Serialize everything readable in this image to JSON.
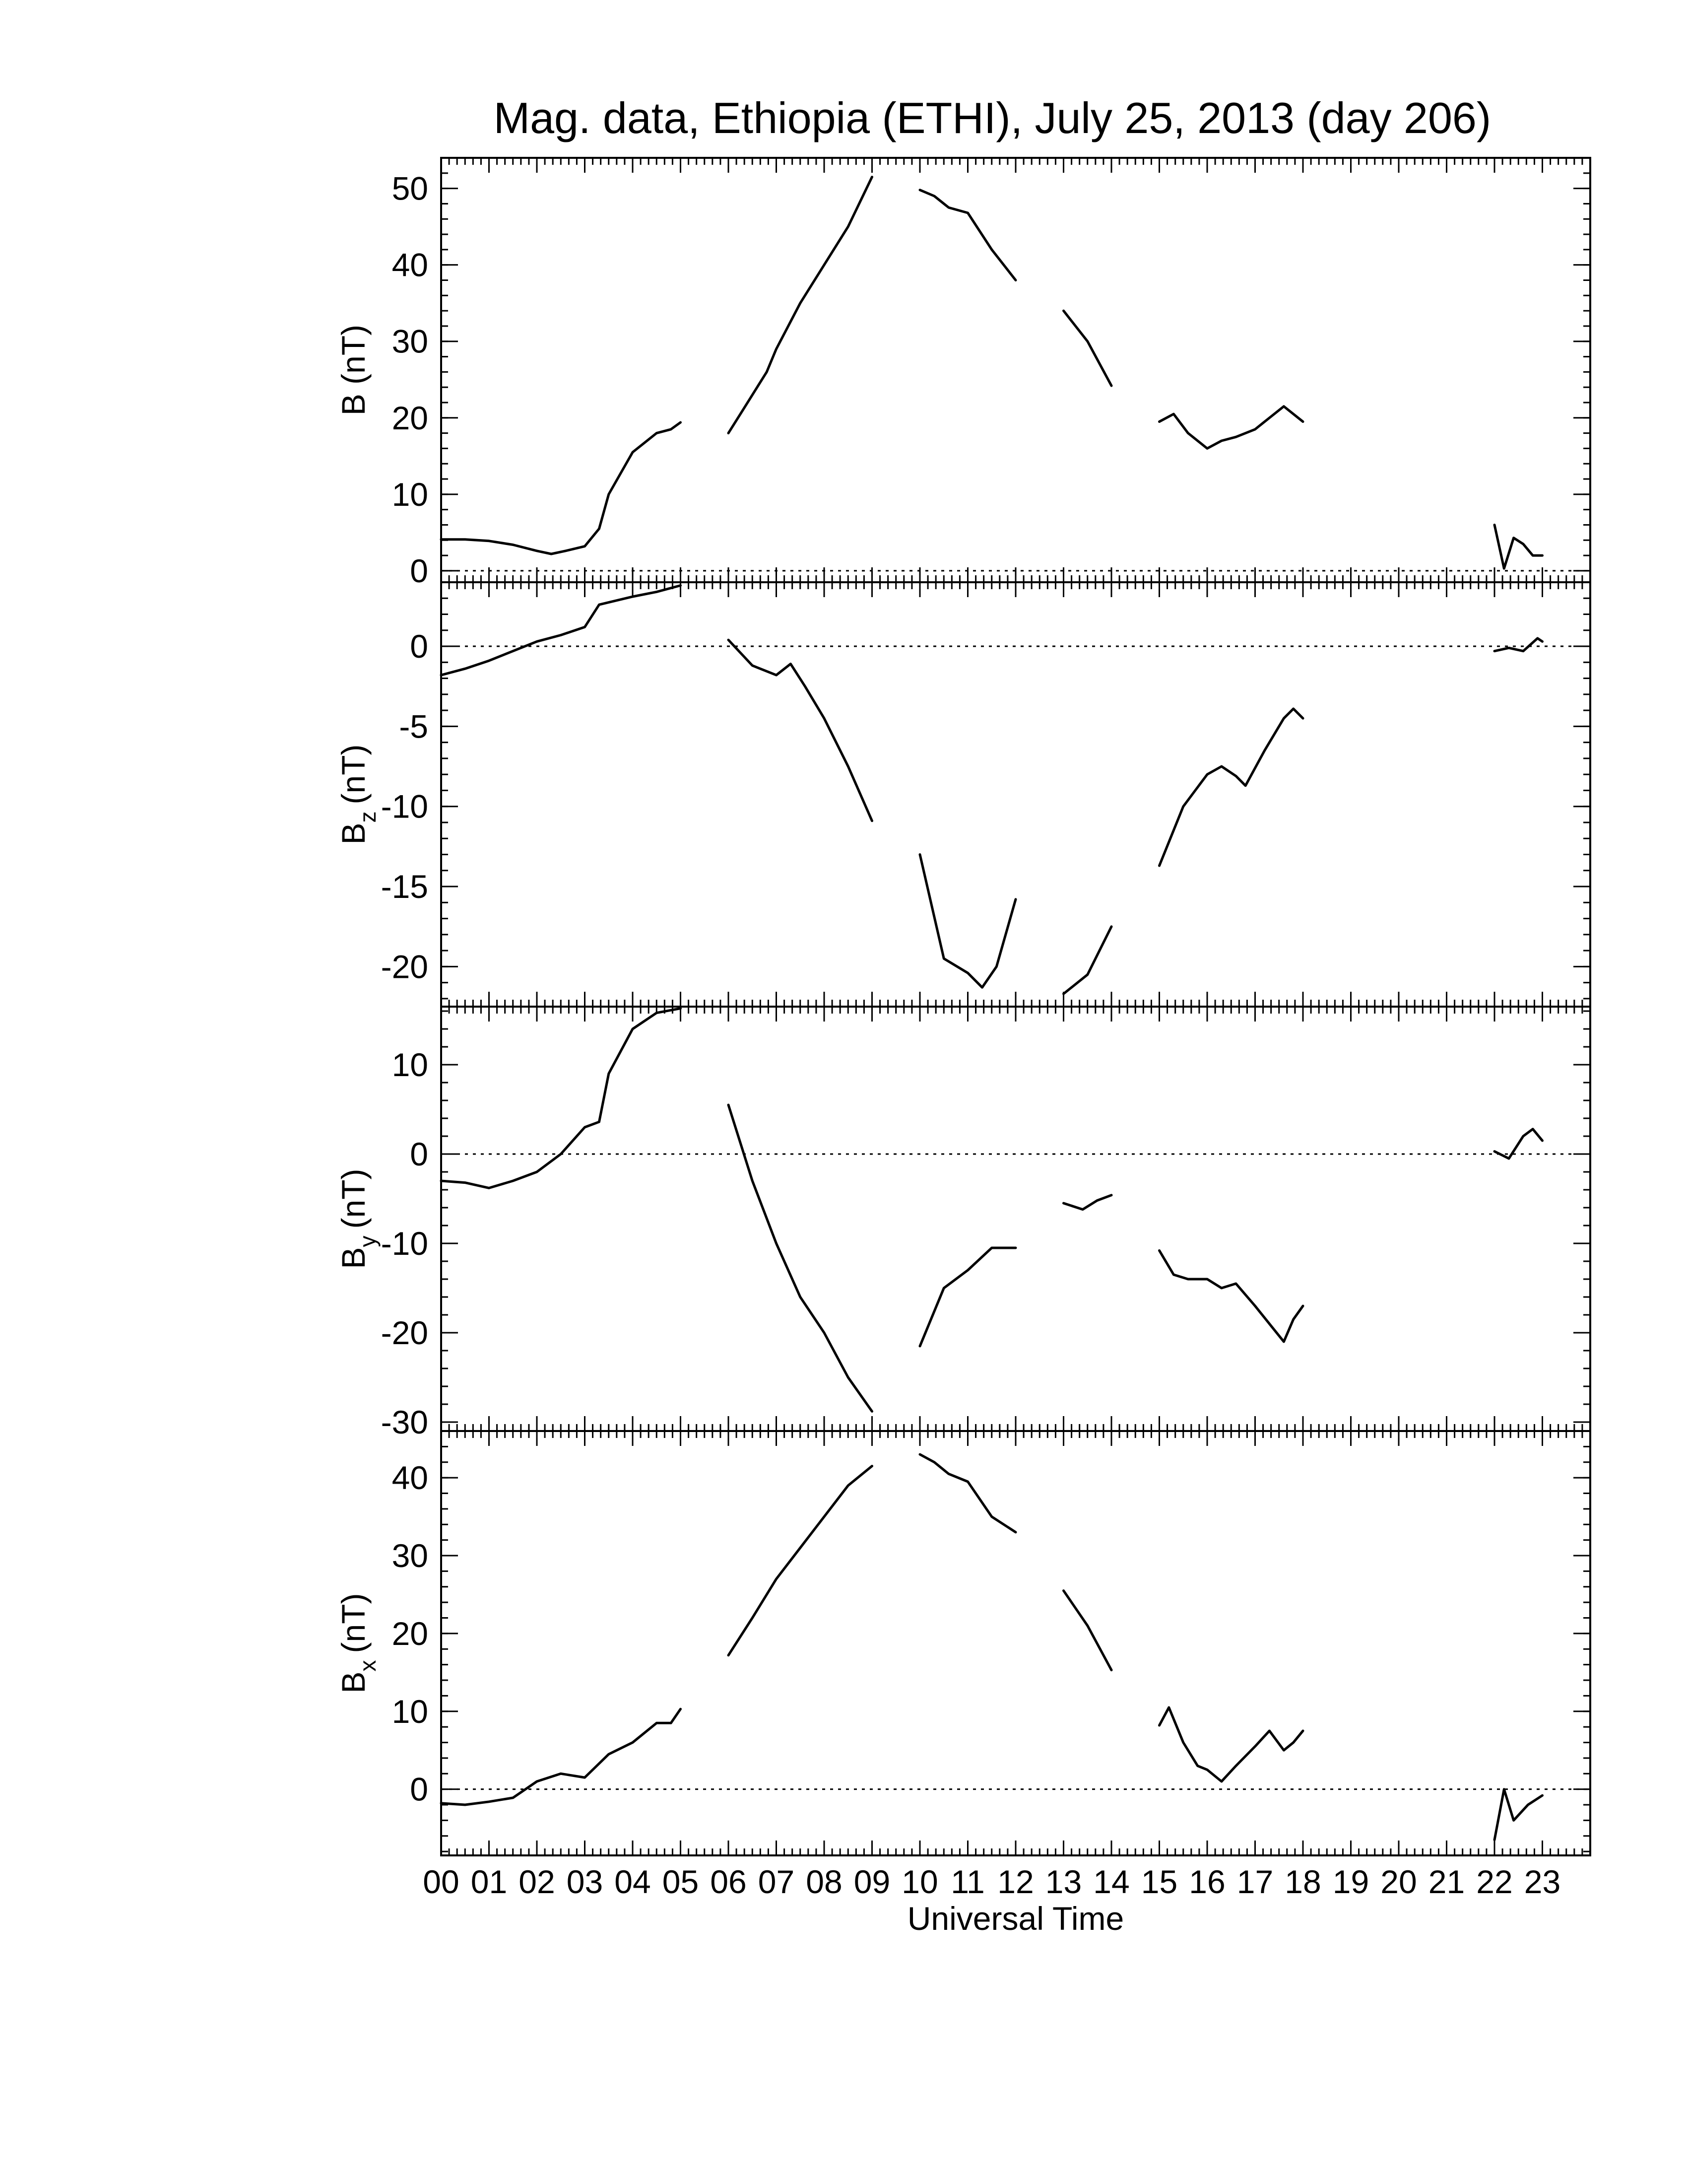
{
  "chart_data": {
    "type": "line",
    "title": "Mag. data, Ethiopia (ETHI), July 25, 2013 (day 206)",
    "xlabel": "Universal Time",
    "xlim": [
      0,
      24
    ],
    "x_tick_labels": [
      "00",
      "01",
      "02",
      "03",
      "04",
      "05",
      "06",
      "07",
      "08",
      "09",
      "10",
      "11",
      "12",
      "13",
      "14",
      "15",
      "16",
      "17",
      "18",
      "19",
      "20",
      "21",
      "22",
      "23"
    ],
    "panels": [
      {
        "id": "B",
        "ylabel_main": "B (nT)",
        "ylabel_sub": "",
        "ylabel_unit": "",
        "ylim": [
          -1.5,
          54
        ],
        "yticks": [
          0,
          10,
          20,
          30,
          40,
          50
        ],
        "zero_line": true,
        "segments": [
          [
            [
              0,
              4.1
            ],
            [
              0.5,
              4.1
            ],
            [
              1,
              3.9
            ],
            [
              1.5,
              3.4
            ],
            [
              2,
              2.6
            ],
            [
              2.3,
              2.2
            ],
            [
              2.6,
              2.6
            ],
            [
              3.0,
              3.2
            ],
            [
              3.3,
              5.5
            ],
            [
              3.5,
              10
            ],
            [
              4.0,
              15.5
            ],
            [
              4.5,
              18
            ],
            [
              4.8,
              18.5
            ],
            [
              5.0,
              19.4
            ]
          ],
          [
            [
              6.0,
              18
            ],
            [
              6.3,
              21
            ],
            [
              6.8,
              26
            ],
            [
              7.0,
              29
            ],
            [
              7.5,
              35
            ],
            [
              8.0,
              40
            ],
            [
              8.5,
              45
            ],
            [
              9.0,
              51.5
            ]
          ],
          [
            [
              10.0,
              49.8
            ],
            [
              10.3,
              49
            ],
            [
              10.6,
              47.5
            ],
            [
              11.0,
              46.8
            ],
            [
              11.5,
              42
            ],
            [
              12.0,
              38
            ]
          ],
          [
            [
              13.0,
              34
            ],
            [
              13.5,
              30
            ],
            [
              14.0,
              24.2
            ]
          ],
          [
            [
              15.0,
              19.5
            ],
            [
              15.3,
              20.5
            ],
            [
              15.6,
              18
            ],
            [
              16.0,
              16
            ],
            [
              16.3,
              17
            ],
            [
              16.6,
              17.5
            ],
            [
              17.0,
              18.5
            ],
            [
              17.3,
              20
            ],
            [
              17.6,
              21.5
            ],
            [
              18.0,
              19.5
            ]
          ],
          [
            [
              22.0,
              6
            ],
            [
              22.2,
              0.3
            ],
            [
              22.4,
              4.3
            ],
            [
              22.6,
              3.5
            ],
            [
              22.8,
              2
            ],
            [
              23.0,
              2
            ]
          ]
        ]
      },
      {
        "id": "Bz",
        "ylabel_main": "B",
        "ylabel_sub": "z",
        "ylabel_unit": "(nT)",
        "ylim": [
          -22.5,
          4
        ],
        "yticks": [
          0,
          -5,
          -10,
          -15,
          -20
        ],
        "zero_line": true,
        "segments": [
          [
            [
              0,
              -1.8
            ],
            [
              0.5,
              -1.4
            ],
            [
              1.0,
              -0.9
            ],
            [
              1.5,
              -0.3
            ],
            [
              2.0,
              0.3
            ],
            [
              2.5,
              0.7
            ],
            [
              3.0,
              1.2
            ],
            [
              3.3,
              2.6
            ],
            [
              4.0,
              3.1
            ],
            [
              4.5,
              3.4
            ],
            [
              5.0,
              3.8
            ]
          ],
          [
            [
              6.0,
              0.4
            ],
            [
              6.5,
              -1.2
            ],
            [
              7.0,
              -1.8
            ],
            [
              7.3,
              -1.1
            ],
            [
              7.6,
              -2.5
            ],
            [
              8.0,
              -4.5
            ],
            [
              8.5,
              -7.5
            ],
            [
              9.0,
              -10.9
            ]
          ],
          [
            [
              10.0,
              -13
            ],
            [
              10.5,
              -19.5
            ],
            [
              11.0,
              -20.4
            ],
            [
              11.3,
              -21.3
            ],
            [
              11.6,
              -20
            ],
            [
              12.0,
              -15.8
            ]
          ],
          [
            [
              13.0,
              -21.7
            ],
            [
              13.5,
              -20.5
            ],
            [
              14.0,
              -17.5
            ]
          ],
          [
            [
              15.0,
              -13.7
            ],
            [
              15.5,
              -10
            ],
            [
              16.0,
              -8
            ],
            [
              16.3,
              -7.5
            ],
            [
              16.6,
              -8.1
            ],
            [
              16.8,
              -8.7
            ],
            [
              17.2,
              -6.5
            ],
            [
              17.6,
              -4.5
            ],
            [
              17.8,
              -3.9
            ],
            [
              18.0,
              -4.5
            ]
          ],
          [
            [
              22.0,
              -0.3
            ],
            [
              22.3,
              -0.1
            ],
            [
              22.6,
              -0.3
            ],
            [
              22.9,
              0.5
            ],
            [
              23.0,
              0.3
            ]
          ]
        ]
      },
      {
        "id": "By",
        "ylabel_main": "B",
        "ylabel_sub": "y",
        "ylabel_unit": "(nT)",
        "ylim": [
          -31,
          16.5
        ],
        "yticks": [
          10,
          0,
          -10,
          -20,
          -30
        ],
        "zero_line": true,
        "segments": [
          [
            [
              0,
              -3
            ],
            [
              0.5,
              -3.2
            ],
            [
              1.0,
              -3.8
            ],
            [
              1.5,
              -3
            ],
            [
              2.0,
              -2
            ],
            [
              2.5,
              0
            ],
            [
              3.0,
              3
            ],
            [
              3.3,
              3.6
            ],
            [
              3.5,
              9
            ],
            [
              4.0,
              14
            ],
            [
              4.5,
              15.8
            ],
            [
              5.0,
              16.3
            ]
          ],
          [
            [
              6.0,
              5.5
            ],
            [
              6.5,
              -3
            ],
            [
              7.0,
              -10
            ],
            [
              7.5,
              -16
            ],
            [
              8.0,
              -20
            ],
            [
              8.5,
              -25
            ],
            [
              9.0,
              -28.8
            ]
          ],
          [
            [
              10.0,
              -21.5
            ],
            [
              10.5,
              -15
            ],
            [
              11.0,
              -13
            ],
            [
              11.5,
              -10.5
            ],
            [
              12.0,
              -10.5
            ]
          ],
          [
            [
              13.0,
              -5.5
            ],
            [
              13.4,
              -6.2
            ],
            [
              13.7,
              -5.2
            ],
            [
              14.0,
              -4.6
            ]
          ],
          [
            [
              15.0,
              -10.8
            ],
            [
              15.3,
              -13.5
            ],
            [
              15.6,
              -14
            ],
            [
              16.0,
              -14
            ],
            [
              16.3,
              -15
            ],
            [
              16.6,
              -14.5
            ],
            [
              17.0,
              -17
            ],
            [
              17.3,
              -19
            ],
            [
              17.6,
              -21
            ],
            [
              17.8,
              -18.5
            ],
            [
              18.0,
              -17
            ]
          ],
          [
            [
              22.0,
              0.3
            ],
            [
              22.3,
              -0.5
            ],
            [
              22.6,
              2
            ],
            [
              22.8,
              2.8
            ],
            [
              23.0,
              1.5
            ]
          ]
        ]
      },
      {
        "id": "Bx",
        "ylabel_main": "B",
        "ylabel_sub": "x",
        "ylabel_unit": "(nT)",
        "ylim": [
          -8.5,
          46
        ],
        "yticks": [
          40,
          30,
          20,
          10,
          0
        ],
        "zero_line": true,
        "segments": [
          [
            [
              0,
              -1.8
            ],
            [
              0.5,
              -2
            ],
            [
              1.0,
              -1.6
            ],
            [
              1.5,
              -1.1
            ],
            [
              2.0,
              1
            ],
            [
              2.5,
              2
            ],
            [
              3.0,
              1.5
            ],
            [
              3.5,
              4.5
            ],
            [
              4.0,
              6
            ],
            [
              4.5,
              8.5
            ],
            [
              4.8,
              8.5
            ],
            [
              5.0,
              10.3
            ]
          ],
          [
            [
              6.0,
              17.2
            ],
            [
              6.5,
              22
            ],
            [
              7.0,
              27
            ],
            [
              7.5,
              31
            ],
            [
              8.0,
              35
            ],
            [
              8.5,
              39
            ],
            [
              9.0,
              41.5
            ]
          ],
          [
            [
              10.0,
              43
            ],
            [
              10.3,
              42
            ],
            [
              10.6,
              40.5
            ],
            [
              11.0,
              39.5
            ],
            [
              11.5,
              35
            ],
            [
              12.0,
              33
            ]
          ],
          [
            [
              13.0,
              25.5
            ],
            [
              13.5,
              21
            ],
            [
              14.0,
              15.3
            ]
          ],
          [
            [
              15.0,
              8.2
            ],
            [
              15.2,
              10.5
            ],
            [
              15.5,
              6
            ],
            [
              15.8,
              3
            ],
            [
              16.0,
              2.5
            ],
            [
              16.3,
              1
            ],
            [
              16.6,
              3
            ],
            [
              17.0,
              5.5
            ],
            [
              17.3,
              7.5
            ],
            [
              17.6,
              5
            ],
            [
              17.8,
              6
            ],
            [
              18.0,
              7.5
            ]
          ],
          [
            [
              22.0,
              -6.5
            ],
            [
              22.2,
              0
            ],
            [
              22.4,
              -4
            ],
            [
              22.7,
              -2
            ],
            [
              23.0,
              -0.8
            ]
          ]
        ]
      }
    ]
  }
}
